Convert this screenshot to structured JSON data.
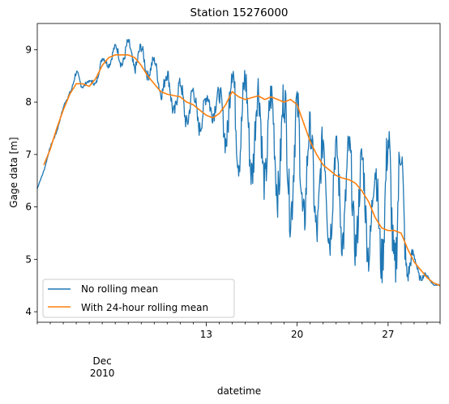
{
  "chart_data": {
    "type": "line",
    "title": "Station 15276000",
    "xlabel": "datetime",
    "ylabel": "Gage data [m]",
    "xlim": [
      "2010-11-30",
      "2010-12-31"
    ],
    "ylim": [
      3.8,
      9.5
    ],
    "y_ticks": [
      4,
      5,
      6,
      7,
      8,
      9
    ],
    "x_major_ticks": [
      {
        "date": "2010-12-13",
        "label": "13"
      },
      {
        "date": "2010-12-20",
        "label": "20"
      },
      {
        "date": "2010-12-27",
        "label": "27"
      }
    ],
    "x_month_label": {
      "date": "2010-12-05",
      "month": "Dec",
      "year": "2010"
    },
    "legend": "lower-left",
    "grid": false,
    "series": [
      {
        "name": "No rolling mean",
        "color": "#1f77b4",
        "upper": [
          [
            "2010-11-30T00:00",
            6.35
          ],
          [
            "2010-12-01T00:00",
            7.15
          ],
          [
            "2010-12-02T00:00",
            7.9
          ],
          [
            "2010-12-02T12:00",
            8.3
          ],
          [
            "2010-12-03T00:00",
            8.6
          ],
          [
            "2010-12-04T00:00",
            8.4
          ],
          [
            "2010-12-04T12:00",
            8.55
          ],
          [
            "2010-12-05T00:00",
            8.85
          ],
          [
            "2010-12-06T00:00",
            9.1
          ],
          [
            "2010-12-07T00:00",
            9.2
          ],
          [
            "2010-12-08T00:00",
            9.1
          ],
          [
            "2010-12-09T00:00",
            8.85
          ],
          [
            "2010-12-10T00:00",
            8.6
          ],
          [
            "2010-12-11T00:00",
            8.45
          ],
          [
            "2010-12-12T00:00",
            8.3
          ],
          [
            "2010-12-13T00:00",
            8.15
          ],
          [
            "2010-12-13T12:00",
            8.7
          ],
          [
            "2010-12-14T00:00",
            8.2
          ],
          [
            "2010-12-15T00:00",
            8.9
          ],
          [
            "2010-12-16T00:00",
            8.6
          ],
          [
            "2010-12-17T00:00",
            8.45
          ],
          [
            "2010-12-18T00:00",
            8.3
          ],
          [
            "2010-12-19T00:00",
            8.35
          ],
          [
            "2010-12-20T00:00",
            8.2
          ],
          [
            "2010-12-21T00:00",
            7.8
          ],
          [
            "2010-12-22T00:00",
            7.5
          ],
          [
            "2010-12-23T00:00",
            7.35
          ],
          [
            "2010-12-24T00:00",
            7.35
          ],
          [
            "2010-12-25T00:00",
            7.1
          ],
          [
            "2010-12-26T00:00",
            6.9
          ],
          [
            "2010-12-27T00:00",
            7.5
          ],
          [
            "2010-12-28T00:00",
            7.5
          ],
          [
            "2010-12-28T12:00",
            5.6
          ],
          [
            "2010-12-29T00:00",
            5.1
          ],
          [
            "2010-12-30T00:00",
            4.7
          ],
          [
            "2010-12-31T00:00",
            4.5
          ]
        ],
        "lower": [
          [
            "2010-11-30T00:00",
            6.3
          ],
          [
            "2010-12-01T00:00",
            7.05
          ],
          [
            "2010-12-02T00:00",
            7.8
          ],
          [
            "2010-12-02T12:00",
            8.15
          ],
          [
            "2010-12-03T00:00",
            8.25
          ],
          [
            "2010-12-04T00:00",
            8.25
          ],
          [
            "2010-12-04T12:00",
            8.3
          ],
          [
            "2010-12-05T00:00",
            8.6
          ],
          [
            "2010-12-06T00:00",
            8.7
          ],
          [
            "2010-12-07T00:00",
            8.55
          ],
          [
            "2010-12-08T00:00",
            8.5
          ],
          [
            "2010-12-09T00:00",
            8.3
          ],
          [
            "2010-12-10T00:00",
            7.8
          ],
          [
            "2010-12-11T00:00",
            7.5
          ],
          [
            "2010-12-12T00:00",
            7.35
          ],
          [
            "2010-12-13T00:00",
            7.3
          ],
          [
            "2010-12-13T12:00",
            7.6
          ],
          [
            "2010-12-14T00:00",
            7.3
          ],
          [
            "2010-12-15T00:00",
            6.6
          ],
          [
            "2010-12-16T00:00",
            6.4
          ],
          [
            "2010-12-17T00:00",
            6.0
          ],
          [
            "2010-12-18T00:00",
            6.1
          ],
          [
            "2010-12-19T00:00",
            5.5
          ],
          [
            "2010-12-20T00:00",
            5.2
          ],
          [
            "2010-12-21T00:00",
            5.2
          ],
          [
            "2010-12-22T00:00",
            4.9
          ],
          [
            "2010-12-23T00:00",
            5.0
          ],
          [
            "2010-12-24T00:00",
            4.85
          ],
          [
            "2010-12-25T00:00",
            4.75
          ],
          [
            "2010-12-26T00:00",
            4.6
          ],
          [
            "2010-12-27T00:00",
            4.3
          ],
          [
            "2010-12-28T00:00",
            4.1
          ],
          [
            "2010-12-28T12:00",
            4.5
          ],
          [
            "2010-12-29T00:00",
            4.6
          ],
          [
            "2010-12-30T00:00",
            4.55
          ],
          [
            "2010-12-31T00:00",
            4.45
          ]
        ]
      },
      {
        "name": "With 24-hour rolling mean",
        "color": "#ff7f0e",
        "points": [
          [
            "2010-11-30T12:00",
            6.8
          ],
          [
            "2010-12-01T00:00",
            7.1
          ],
          [
            "2010-12-01T12:00",
            7.5
          ],
          [
            "2010-12-02T00:00",
            7.85
          ],
          [
            "2010-12-02T12:00",
            8.15
          ],
          [
            "2010-12-03T00:00",
            8.35
          ],
          [
            "2010-12-03T12:00",
            8.35
          ],
          [
            "2010-12-04T00:00",
            8.3
          ],
          [
            "2010-12-04T12:00",
            8.45
          ],
          [
            "2010-12-05T00:00",
            8.7
          ],
          [
            "2010-12-05T12:00",
            8.85
          ],
          [
            "2010-12-06T00:00",
            8.9
          ],
          [
            "2010-12-07T00:00",
            8.9
          ],
          [
            "2010-12-07T12:00",
            8.85
          ],
          [
            "2010-12-08T00:00",
            8.7
          ],
          [
            "2010-12-08T12:00",
            8.5
          ],
          [
            "2010-12-09T00:00",
            8.35
          ],
          [
            "2010-12-09T12:00",
            8.2
          ],
          [
            "2010-12-10T00:00",
            8.15
          ],
          [
            "2010-12-11T00:00",
            8.1
          ],
          [
            "2010-12-11T12:00",
            8.0
          ],
          [
            "2010-12-12T00:00",
            7.95
          ],
          [
            "2010-12-12T12:00",
            7.85
          ],
          [
            "2010-12-13T00:00",
            7.75
          ],
          [
            "2010-12-13T12:00",
            7.7
          ],
          [
            "2010-12-14T00:00",
            7.78
          ],
          [
            "2010-12-14T12:00",
            7.95
          ],
          [
            "2010-12-15T00:00",
            8.2
          ],
          [
            "2010-12-15T12:00",
            8.1
          ],
          [
            "2010-12-16T00:00",
            8.05
          ],
          [
            "2010-12-17T00:00",
            8.12
          ],
          [
            "2010-12-17T12:00",
            8.05
          ],
          [
            "2010-12-18T00:00",
            8.1
          ],
          [
            "2010-12-19T00:00",
            8.0
          ],
          [
            "2010-12-19T12:00",
            8.05
          ],
          [
            "2010-12-20T00:00",
            7.95
          ],
          [
            "2010-12-20T12:00",
            7.6
          ],
          [
            "2010-12-21T00:00",
            7.25
          ],
          [
            "2010-12-21T12:00",
            7.0
          ],
          [
            "2010-12-22T00:00",
            6.8
          ],
          [
            "2010-12-22T12:00",
            6.7
          ],
          [
            "2010-12-23T00:00",
            6.6
          ],
          [
            "2010-12-23T12:00",
            6.55
          ],
          [
            "2010-12-24T00:00",
            6.52
          ],
          [
            "2010-12-24T12:00",
            6.45
          ],
          [
            "2010-12-25T00:00",
            6.3
          ],
          [
            "2010-12-25T12:00",
            6.1
          ],
          [
            "2010-12-26T00:00",
            5.8
          ],
          [
            "2010-12-26T12:00",
            5.6
          ],
          [
            "2010-12-27T00:00",
            5.55
          ],
          [
            "2010-12-27T12:00",
            5.55
          ],
          [
            "2010-12-28T00:00",
            5.5
          ],
          [
            "2010-12-28T12:00",
            5.2
          ],
          [
            "2010-12-29T00:00",
            4.95
          ],
          [
            "2010-12-29T12:00",
            4.8
          ],
          [
            "2010-12-30T00:00",
            4.65
          ],
          [
            "2010-12-30T12:00",
            4.55
          ],
          [
            "2010-12-31T00:00",
            4.5
          ]
        ]
      }
    ]
  }
}
